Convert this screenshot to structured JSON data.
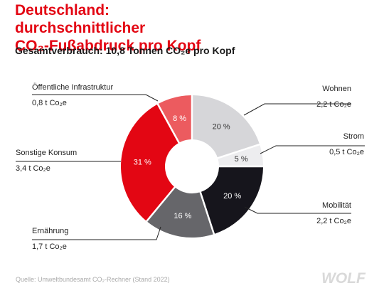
{
  "title_line1": "Deutschland: durchschnittlicher",
  "title_line2": "CO₂-Fußabdruck pro Kopf",
  "subtitle": "Gesamtverbrauch: 10,8 Tonnen CO₂e pro Kopf",
  "source": "Quelle: Umweltbundesamt CO₂-Rechner (Stand 2022)",
  "logo_text": "WOLF",
  "chart_data": {
    "type": "pie",
    "title": "Deutschland: durchschnittlicher CO₂-Fußabdruck pro Kopf",
    "subtitle": "Gesamtverbrauch: 10,8 Tonnen CO₂e pro Kopf",
    "slices": [
      {
        "name": "Wohnen",
        "value": 20,
        "pct_label": "20 %",
        "amount": "2,2 t Co₂e",
        "color": "#d6d6d9"
      },
      {
        "name": "Strom",
        "value": 5,
        "pct_label": "5 %",
        "amount": "0,5 t Co₂e",
        "color": "#ededef"
      },
      {
        "name": "Mobilität",
        "value": 20,
        "pct_label": "20 %",
        "amount": "2,2 t Co₂e",
        "color": "#16151c"
      },
      {
        "name": "Ernährung",
        "value": 16,
        "pct_label": "16 %",
        "amount": "1,7 t Co₂e",
        "color": "#66666a"
      },
      {
        "name": "Sonstige Konsum",
        "value": 31,
        "pct_label": "31 %",
        "amount": "3,4 t Co₂e",
        "color": "#e30613"
      },
      {
        "name": "Öffentliche Infrastruktur",
        "value": 8,
        "pct_label": "8 %",
        "amount": "0,8 t Co₂e",
        "color": "#ec5b5f"
      }
    ]
  }
}
